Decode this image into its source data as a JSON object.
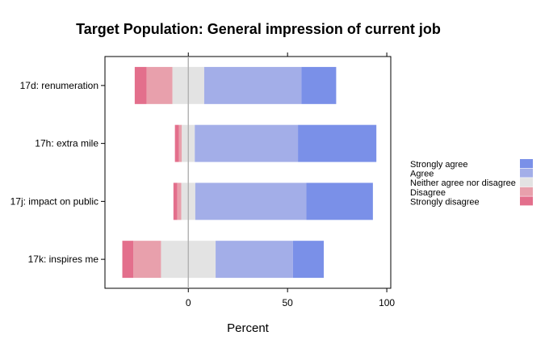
{
  "chart_data": {
    "type": "bar",
    "orientation": "horizontal",
    "stacked": "diverging",
    "title": "Target Population: General impression of current job",
    "xlabel": "Percent",
    "ylabel": "",
    "xlim": [
      -42,
      102
    ],
    "x_ticks": [
      0,
      50,
      100
    ],
    "zero_line": 0,
    "categories": [
      "17d: renumeration",
      "17h: extra mile",
      "17j: impact on public",
      "17k: inspires me"
    ],
    "series": [
      {
        "name": "Strongly disagree",
        "color": "#e36f8c",
        "values": [
          6,
          2,
          2,
          5.5
        ]
      },
      {
        "name": "Disagree",
        "color": "#e8a0ac",
        "values": [
          13,
          1.5,
          2,
          14
        ]
      },
      {
        "name": "Neither agree nor disagree",
        "color": "#e3e3e3",
        "values": [
          16,
          6.5,
          7,
          27.5
        ]
      },
      {
        "name": "Agree",
        "color": "#a3aee8",
        "values": [
          49,
          52,
          56,
          39
        ]
      },
      {
        "name": "Strongly agree",
        "color": "#7a90e8",
        "values": [
          17.5,
          39.5,
          33.5,
          15.5
        ]
      }
    ],
    "neutral_series": "Neither agree nor disagree",
    "legend": {
      "position": "right",
      "order": [
        "Strongly agree",
        "Agree",
        "Neither agree nor disagree",
        "Disagree",
        "Strongly disagree"
      ]
    }
  }
}
